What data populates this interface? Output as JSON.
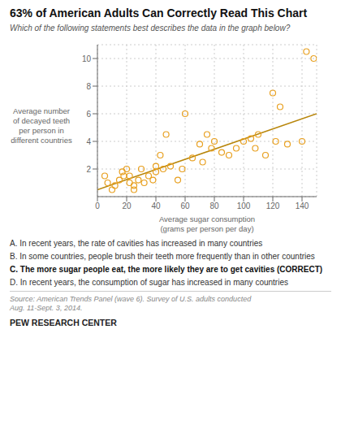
{
  "chart_data": {
    "type": "scatter",
    "title": "63% of American Adults Can Correctly Read This Chart",
    "subtitle": "Which of the following statements best describes the data in the graph below?",
    "xlabel": "Average sugar consumption\n(grams per person per day)",
    "ylabel": "Average number\nof decayed teeth\nper person in\ndifferent countries",
    "series": [
      {
        "type": "scatter",
        "color": "#E8A020",
        "x": [
          5,
          7,
          10,
          12,
          15,
          17,
          18,
          20,
          22,
          22,
          25,
          25,
          28,
          30,
          32,
          35,
          38,
          40,
          40,
          43,
          45,
          47,
          50,
          55,
          58,
          60,
          65,
          70,
          72,
          75,
          78,
          80,
          85,
          90,
          95,
          100,
          105,
          108,
          110,
          115,
          120,
          122,
          125,
          130,
          140,
          143,
          148
        ],
        "values": [
          1.5,
          1.0,
          0.5,
          0.8,
          1.2,
          1.8,
          1.5,
          2.0,
          1.0,
          1.5,
          0.8,
          0.5,
          1.2,
          2.0,
          1.0,
          1.5,
          1.2,
          2.2,
          1.8,
          3.0,
          2.0,
          4.5,
          2.2,
          1.2,
          2.0,
          6.0,
          2.8,
          3.8,
          2.5,
          4.5,
          3.5,
          4.0,
          3.2,
          3.0,
          3.5,
          4.0,
          4.2,
          3.5,
          4.5,
          3.0,
          7.5,
          4.0,
          6.5,
          3.8,
          4.0,
          10.5,
          10.0
        ]
      },
      {
        "type": "line",
        "color": "#B8860B",
        "x": [
          0,
          150
        ],
        "values": [
          0.5,
          6.0
        ]
      }
    ],
    "xlim": [
      0,
      150
    ],
    "ylim": [
      0,
      11
    ],
    "xticks": [
      0,
      20,
      40,
      60,
      80,
      100,
      120,
      140
    ],
    "yticks": [
      2,
      4,
      6,
      8,
      10
    ],
    "grid": true,
    "annotations": [
      "A.  In recent years, the rate of cavities has increased in many countries",
      "B.  In some countries, people brush their teeth more frequently than in other countries",
      "C.  The more sugar people eat, the more likely they are to get cavities (CORRECT)",
      "D.  In recent years, the consumption of sugar has increased in many countries"
    ],
    "source": "Source: American Trends Panel (wave 6). Survey of U.S. adults conducted\nAug. 11-Sept. 3, 2014.",
    "branding": "PEW RESEARCH CENTER"
  }
}
